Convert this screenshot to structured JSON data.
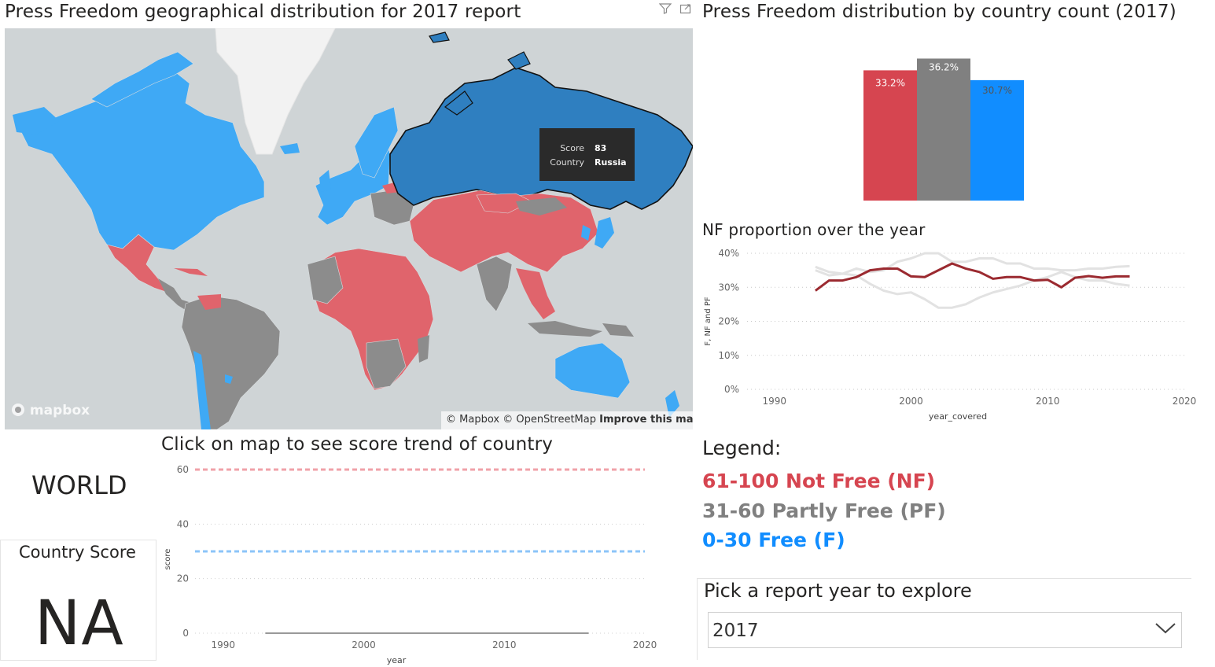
{
  "map": {
    "title": "Press Freedom geographical distribution for 2017 report",
    "filter_icon": "filter-icon",
    "focus_icon": "focus-mode-icon",
    "tooltip": {
      "score_label": "Score",
      "score_value": "83",
      "country_label": "Country",
      "country_value": "Russia"
    },
    "logo": "mapbox",
    "attribution": "© Mapbox © OpenStreetMap",
    "improve_link": "Improve this map",
    "colors": {
      "ocean": "#cfd4d6",
      "nf": "#e0646c",
      "pf": "#8c8c8c",
      "f": "#3fa9f5",
      "selected": "#2f7fc0",
      "ice": "#f2f2f2"
    }
  },
  "bar_chart": {
    "title": "Press Freedom distribution by country count (2017)"
  },
  "nf_chart": {
    "title": "NF proportion over the year"
  },
  "trend": {
    "title": "Click on map to see score trend of country"
  },
  "region": "WORLD",
  "score_card": {
    "label": "Country Score",
    "value": "NA"
  },
  "legend": {
    "title": "Legend:",
    "nf": {
      "text": "61-100 Not Free (NF)",
      "color": "#d64550"
    },
    "pf": {
      "text": "31-60 Partly Free (PF)",
      "color": "#808080"
    },
    "f": {
      "text": "0-30 Free (F)",
      "color": "#118dff"
    }
  },
  "year_picker": {
    "label": "Pick a report year to explore",
    "value": "2017",
    "chevron_icon": "chevron-down-icon"
  },
  "chart_data": [
    {
      "type": "bar",
      "title": "Press Freedom distribution by country count (2017)",
      "categories": [
        "Not Free",
        "Partly Free",
        "Free"
      ],
      "values": [
        33.2,
        36.2,
        30.7
      ],
      "labels": [
        "33.2%",
        "36.2%",
        "30.7%"
      ],
      "colors": [
        "#d64550",
        "#808080",
        "#118dff"
      ],
      "ylim": [
        0,
        40
      ]
    },
    {
      "type": "line",
      "title": "NF proportion over the year",
      "xlabel": "year_covered",
      "ylabel": "F, NF and PF",
      "xlim": [
        1988,
        2020
      ],
      "ylim": [
        0,
        40
      ],
      "xticks": [
        "1990",
        "2000",
        "2010",
        "2020"
      ],
      "yticks": [
        "0%",
        "10%",
        "20%",
        "30%",
        "40%"
      ],
      "grid": true,
      "series": [
        {
          "color": "#9b2a30",
          "width": 3,
          "x": [
            1993,
            1994,
            1995,
            1996,
            1997,
            1998,
            1999,
            2000,
            2001,
            2002,
            2003,
            2004,
            2005,
            2006,
            2007,
            2008,
            2009,
            2010,
            2011,
            2012,
            2013,
            2014,
            2015,
            2016
          ],
          "y": [
            29,
            32,
            32,
            33,
            35,
            35.5,
            35.5,
            33.2,
            33,
            35,
            37,
            35.5,
            34.5,
            32.5,
            33,
            33,
            32,
            32.2,
            30,
            32.8,
            33.3,
            32.8,
            33.2,
            33.2
          ]
        },
        {
          "color": "#e2e2e2",
          "width": 3,
          "x": [
            1993,
            1994,
            1995,
            1996,
            1997,
            1998,
            1999,
            2000,
            2001,
            2002,
            2003,
            2004,
            2005,
            2006,
            2007,
            2008,
            2009,
            2010,
            2011,
            2012,
            2013,
            2014,
            2015,
            2016
          ],
          "y": [
            36,
            34.5,
            34,
            35.5,
            34.5,
            35,
            37.5,
            38.5,
            40,
            40,
            37.5,
            37.5,
            38.5,
            38.5,
            37,
            37,
            35.5,
            35.5,
            35,
            35,
            35.5,
            35.5,
            36,
            36.2
          ]
        },
        {
          "color": "#e2e2e2",
          "width": 3,
          "x": [
            1993,
            1994,
            1995,
            1996,
            1997,
            1998,
            1999,
            2000,
            2001,
            2002,
            2003,
            2004,
            2005,
            2006,
            2007,
            2008,
            2009,
            2010,
            2011,
            2012,
            2013,
            2014,
            2015,
            2016
          ],
          "y": [
            35,
            33.5,
            34,
            33.5,
            31,
            29,
            28,
            28.5,
            26.5,
            24,
            24,
            25,
            27,
            28.5,
            29.5,
            30.5,
            32,
            33,
            34.5,
            33,
            32,
            32,
            31,
            30.5
          ]
        }
      ]
    },
    {
      "type": "line",
      "title": "Click on map to see score trend of country",
      "xlabel": "year",
      "ylabel": "score",
      "xlim": [
        1988,
        2020
      ],
      "ylim": [
        0,
        60
      ],
      "xticks": [
        "1990",
        "2000",
        "2010",
        "2020"
      ],
      "yticks": [
        "0",
        "20",
        "40",
        "60"
      ],
      "series": [
        {
          "color": "#999999",
          "width": 2,
          "x": [
            1993,
            2016
          ],
          "y": [
            0,
            0
          ]
        }
      ],
      "reference_lines": [
        {
          "y": 60,
          "color": "#f0a2a8",
          "dash": true
        },
        {
          "y": 30,
          "color": "#8cc4f8",
          "dash": true
        }
      ]
    }
  ]
}
